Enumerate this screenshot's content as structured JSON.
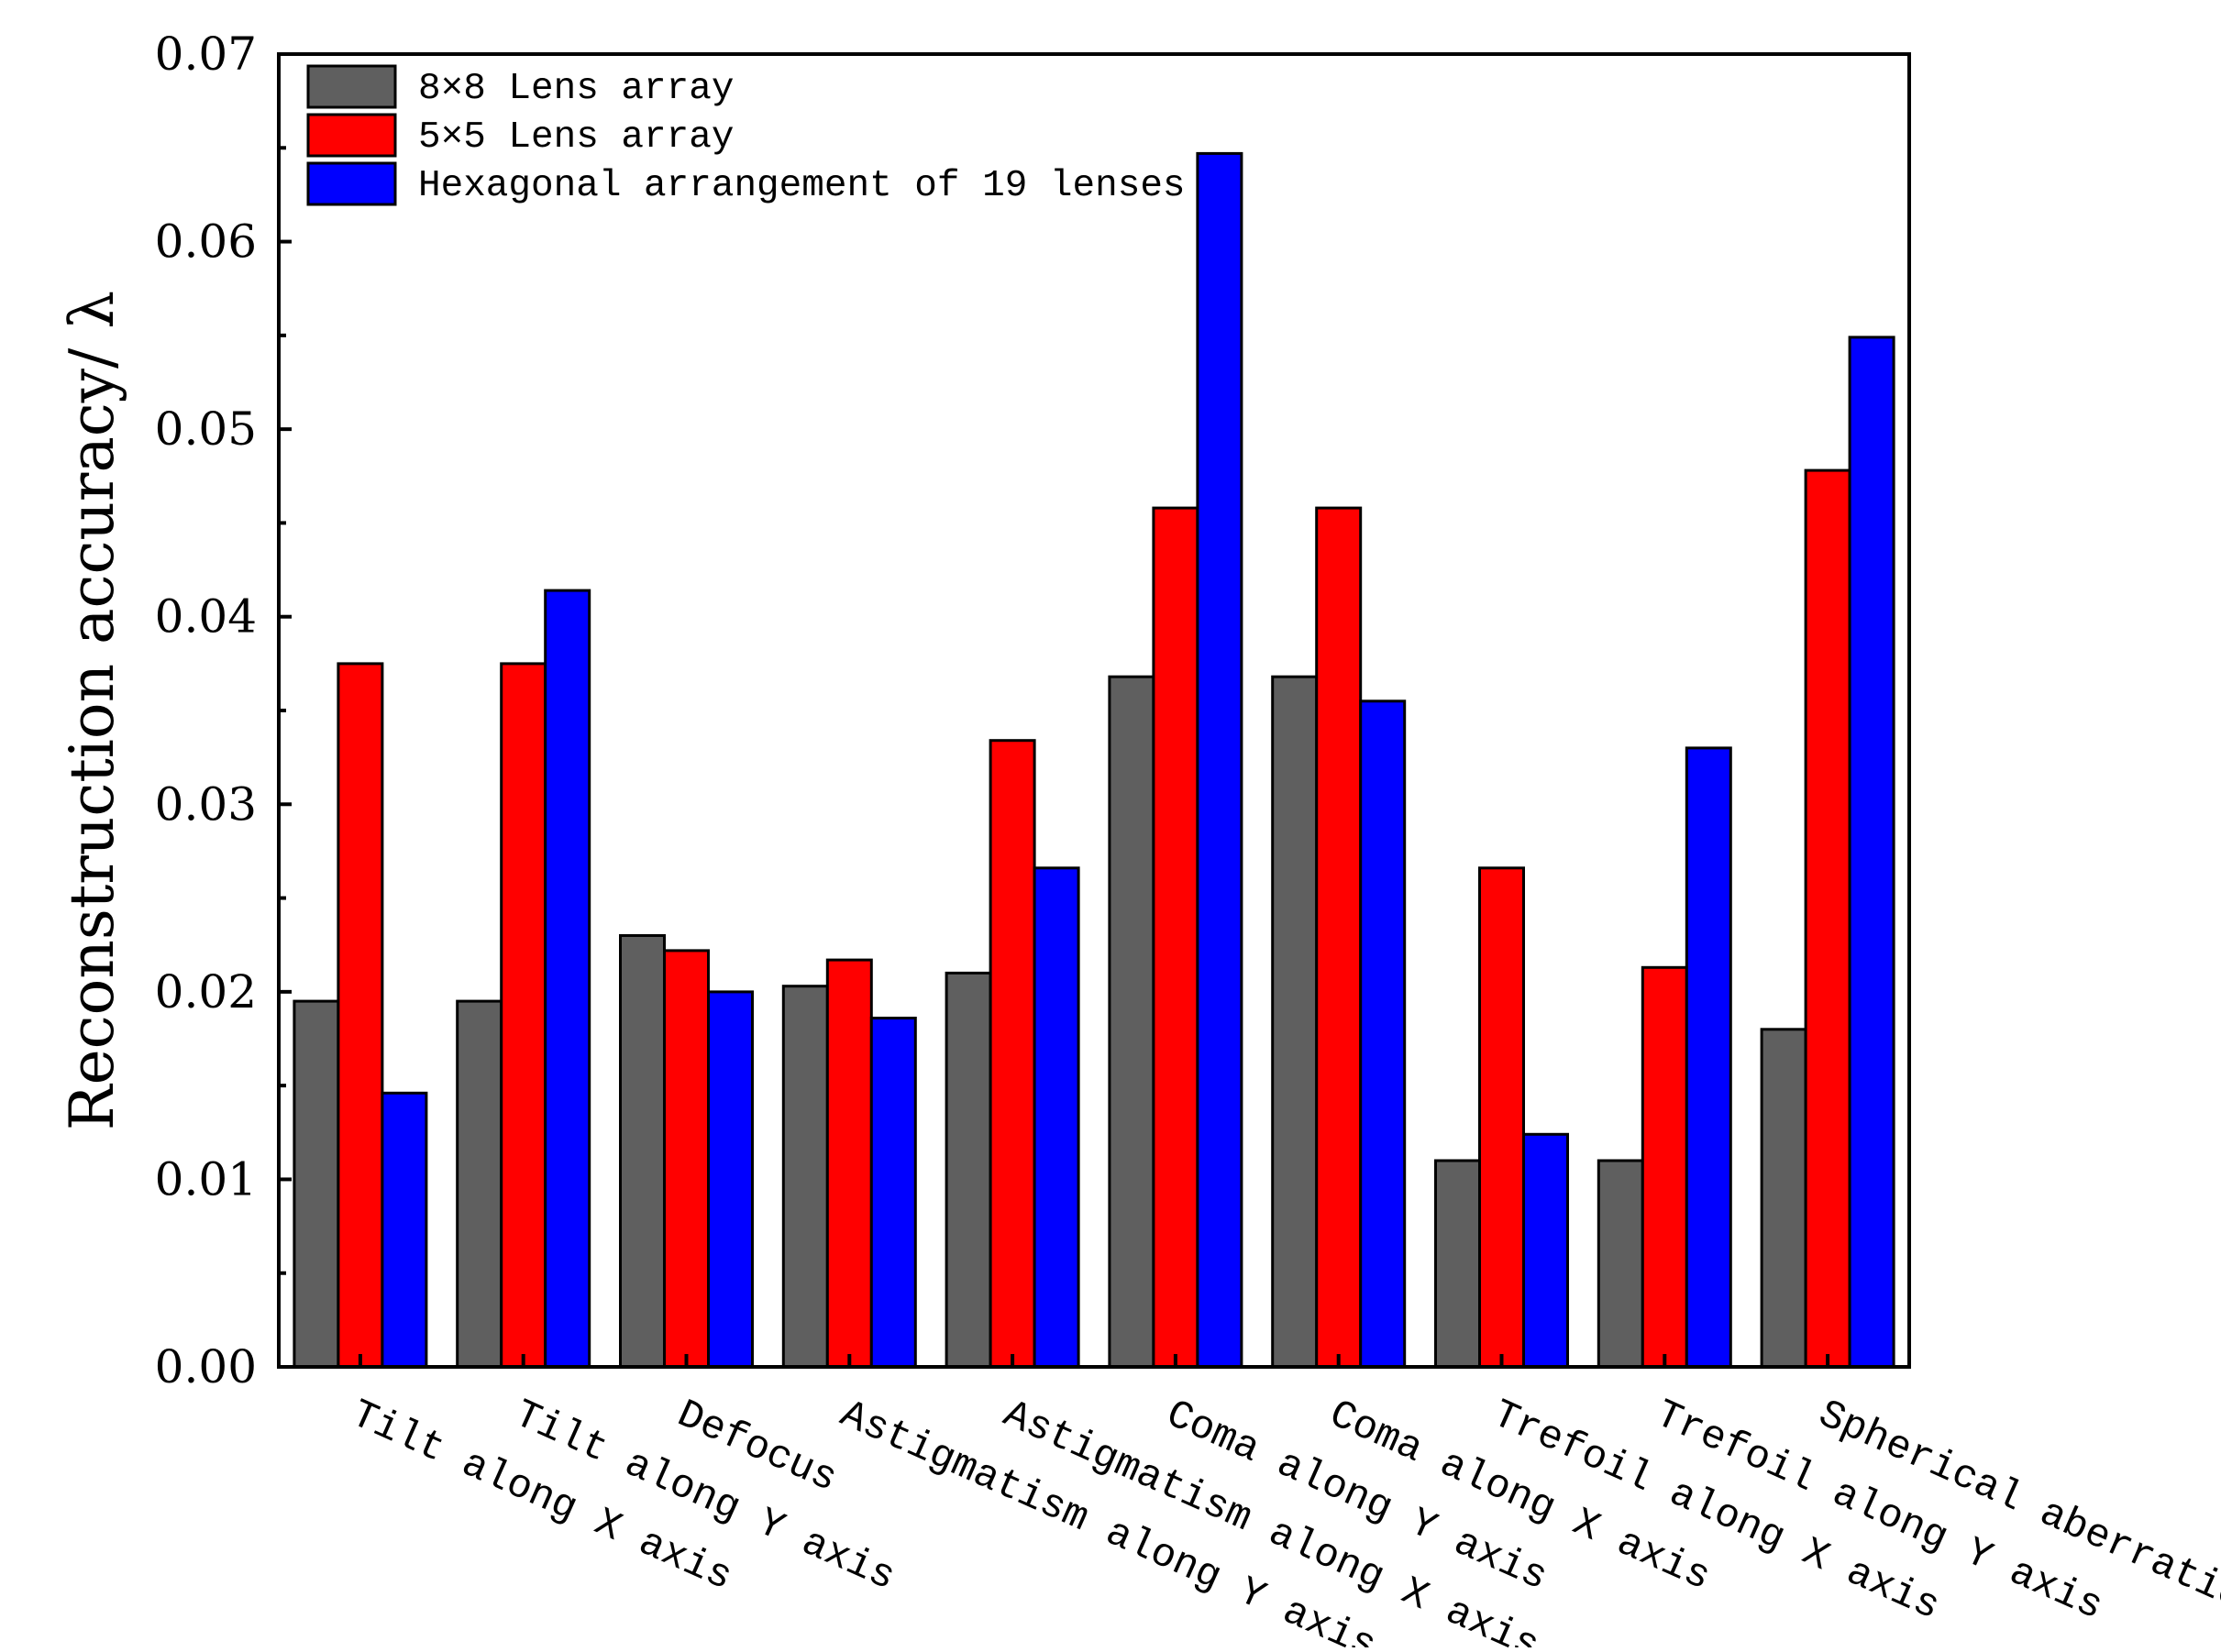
{
  "colors": {
    "series_8x8": "#5f5f5f",
    "series_5x5": "#ff0000",
    "series_hex": "#0000ff",
    "axis": "#000000"
  },
  "chart_data": {
    "type": "bar",
    "title": "",
    "xlabel": "",
    "ylabel": "Reconstruction accuracy/ λ",
    "ylim": [
      0,
      0.07
    ],
    "yticks": [
      "0.00",
      "0.01",
      "0.02",
      "0.03",
      "0.04",
      "0.05",
      "0.06",
      "0.07"
    ],
    "categories": [
      "Tilt along X axis",
      "Tilt along Y axis",
      "Defocus",
      "Astigmatism along Y axis",
      "Astigmatism along X axis",
      "Coma along Y axis",
      "Coma along X axis",
      "Trefoil along X axis",
      "Trefoil along Y axis",
      "Spherical aberration"
    ],
    "series": [
      {
        "name": "8×8 Lens array",
        "color": "#5f5f5f",
        "values": [
          0.0195,
          0.0195,
          0.023,
          0.0203,
          0.021,
          0.0368,
          0.0368,
          0.011,
          0.011,
          0.018
        ]
      },
      {
        "name": "5×5 Lens array",
        "color": "#ff0000",
        "values": [
          0.0375,
          0.0375,
          0.0222,
          0.0217,
          0.0334,
          0.0458,
          0.0458,
          0.0266,
          0.0213,
          0.0478
        ]
      },
      {
        "name": "Hexagonal arrangement of 19 lenses",
        "color": "#0000ff",
        "values": [
          0.0146,
          0.0414,
          0.02,
          0.0186,
          0.0266,
          0.0647,
          0.0355,
          0.0124,
          0.033,
          0.0549
        ]
      }
    ],
    "legend": {
      "placement": "top-left"
    }
  }
}
